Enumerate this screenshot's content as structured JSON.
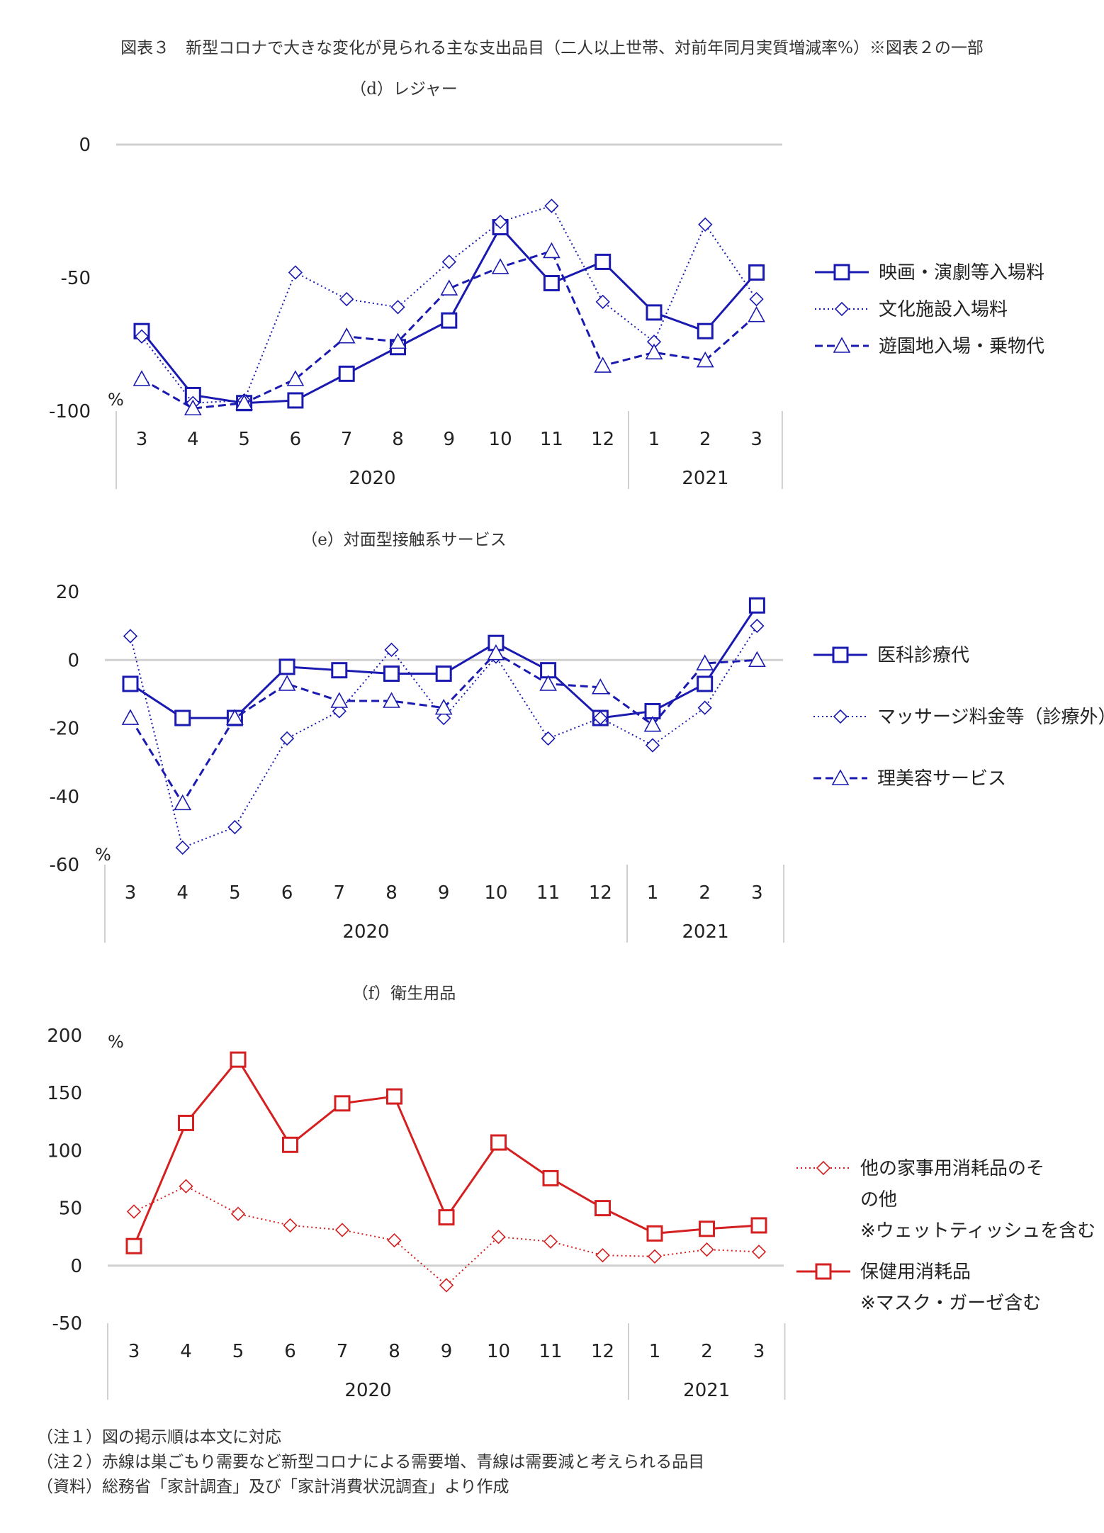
{
  "title": "図表３　新型コロナで大きな変化が見られる主な支出品目（二人以上世帯、対前年同月実質増減率%）※図表２の一部",
  "notes": [
    "（注１）図の掲示順は本文に対応",
    "（注２）赤線は巣ごもり需要など新型コロナによる需要増、青線は需要減と考えられる品目",
    "（資料）総務省「家計調査」及び「家計消費状況調査」より作成"
  ],
  "chart_data": [
    {
      "type": "line",
      "title": "（d）レジャー",
      "ylabel": "%",
      "ylim": [
        -100,
        0
      ],
      "yticks": [
        0,
        -50,
        -100
      ],
      "categories": [
        "3",
        "4",
        "5",
        "6",
        "7",
        "8",
        "9",
        "10",
        "11",
        "12",
        "1",
        "2",
        "3"
      ],
      "year_groups": [
        {
          "label": "2020",
          "count": 10
        },
        {
          "label": "2021",
          "count": 3
        }
      ],
      "grid": "zero line only",
      "legend_position": "right",
      "color": "#1a1ab0",
      "series": [
        {
          "name": "映画・演劇等入場料",
          "style": "solid",
          "marker": "square",
          "values": [
            -70,
            -94,
            -97,
            -96,
            -86,
            -76,
            -66,
            -31,
            -52,
            -44,
            -63,
            -70,
            -48
          ]
        },
        {
          "name": "文化施設入場料",
          "style": "dotted",
          "marker": "diamond",
          "values": [
            -72,
            -97,
            -96,
            -48,
            -58,
            -61,
            -44,
            -29,
            -23,
            -59,
            -74,
            -30,
            -58
          ]
        },
        {
          "name": "遊園地入場・乗物代",
          "style": "dashed",
          "marker": "triangle",
          "values": [
            -88,
            -99,
            -97,
            -88,
            -72,
            -74,
            -54,
            -46,
            -40,
            -83,
            -78,
            -81,
            -64
          ]
        }
      ]
    },
    {
      "type": "line",
      "title": "（e）対面型接触系サービス",
      "ylabel": "%",
      "ylim": [
        -60,
        20
      ],
      "yticks": [
        20,
        0,
        -20,
        -40,
        -60
      ],
      "categories": [
        "3",
        "4",
        "5",
        "6",
        "7",
        "8",
        "9",
        "10",
        "11",
        "12",
        "1",
        "2",
        "3"
      ],
      "year_groups": [
        {
          "label": "2020",
          "count": 10
        },
        {
          "label": "2021",
          "count": 3
        }
      ],
      "grid": "zero line only",
      "legend_position": "right",
      "color": "#1a1ab0",
      "series": [
        {
          "name": "医科診療代",
          "style": "solid",
          "marker": "square",
          "values": [
            -7,
            -17,
            -17,
            -2,
            -3,
            -4,
            -4,
            5,
            -3,
            -17,
            -15,
            -7,
            16
          ]
        },
        {
          "name": "マッサージ料金等（診療外）",
          "style": "dotted",
          "marker": "diamond",
          "values": [
            7,
            -55,
            -49,
            -23,
            -15,
            3,
            -17,
            1,
            -23,
            -17,
            -25,
            -14,
            10
          ]
        },
        {
          "name": "理美容サービス",
          "style": "dashed",
          "marker": "triangle",
          "values": [
            -17,
            -42,
            -17,
            -7,
            -12,
            -12,
            -14,
            2,
            -7,
            -8,
            -19,
            -1,
            0
          ]
        }
      ]
    },
    {
      "type": "line",
      "title": "（f）衛生用品",
      "ylabel": "%",
      "ylim": [
        -50,
        200
      ],
      "yticks": [
        200,
        150,
        100,
        50,
        0,
        -50
      ],
      "categories": [
        "3",
        "4",
        "5",
        "6",
        "7",
        "8",
        "9",
        "10",
        "11",
        "12",
        "1",
        "2",
        "3"
      ],
      "year_groups": [
        {
          "label": "2020",
          "count": 10
        },
        {
          "label": "2021",
          "count": 3
        }
      ],
      "grid": "zero line only",
      "legend_position": "right",
      "color": "#d42020",
      "series": [
        {
          "name": "他の家事用消耗品のその他",
          "legend_lines": [
            "他の家事用消耗品のそ",
            "の他",
            "※ウェットティッシュを含む"
          ],
          "style": "dotted",
          "marker": "diamond",
          "values": [
            47,
            69,
            45,
            35,
            31,
            22,
            -17,
            25,
            21,
            9,
            8,
            14,
            12
          ]
        },
        {
          "name": "保健用消耗品",
          "legend_lines": [
            "保健用消耗品",
            "※マスク・ガーゼ含む"
          ],
          "style": "solid",
          "marker": "square",
          "values": [
            17,
            124,
            179,
            105,
            141,
            147,
            42,
            107,
            76,
            50,
            28,
            32,
            35
          ]
        }
      ]
    }
  ]
}
